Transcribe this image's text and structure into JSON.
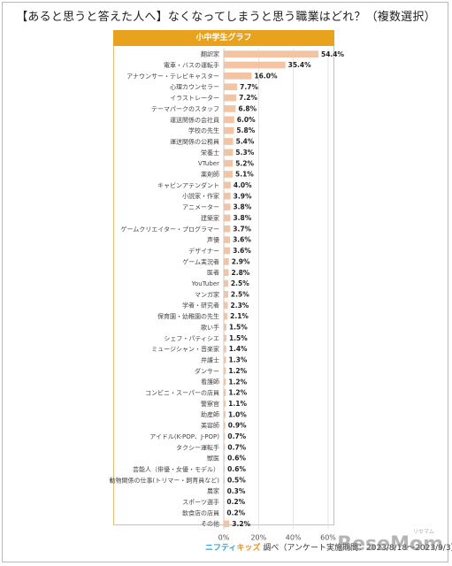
{
  "title": "【あると思うと答えた人へ】なくなってしまうと思う職業はどれ？（複数選択）",
  "panel_title": "小中学生グラフ",
  "footer": {
    "brand_part1": "ニフティ",
    "brand_part2": "キッズ",
    "text": "調べ（アンケート実施期間：2023/8/18～2023/9/3）"
  },
  "watermark": {
    "text": "ReseMom",
    "kana": "リセマム"
  },
  "colors": {
    "bar": "#f2c4a3",
    "header": "#e8a21e",
    "grid": "#dddddd"
  },
  "chart_data": {
    "type": "bar",
    "orientation": "horizontal",
    "title": "",
    "xlabel": "",
    "ylabel": "",
    "xlim": [
      0,
      60
    ],
    "ticks": [
      "0%",
      "20%",
      "40%",
      "60%"
    ],
    "tick_values": [
      0,
      20,
      40,
      60
    ],
    "grid": true,
    "categories": [
      "翻訳家",
      "電車・バスの運転手",
      "アナウンサー・テレビキャスター",
      "心理カウンセラー",
      "イラストレーター",
      "テーマパークのスタッフ",
      "運送関係の会社員",
      "学校の先生",
      "運送関係の公務員",
      "栄養士",
      "VTuber",
      "薬剤師",
      "キャビンアテンダント",
      "小説家・作家",
      "アニメーター",
      "建築家",
      "ゲームクリエイター・プログラマー",
      "声優",
      "デザイナー",
      "ゲーム実況者",
      "医者",
      "YouTuber",
      "マンガ家",
      "学者・研究者",
      "保育園・幼稚園の先生",
      "歌い手",
      "シェフ・パティシエ",
      "ミュージシャン・音楽家",
      "弁護士",
      "ダンサー",
      "看護師",
      "コンビニ・スーパーの店員",
      "警察官",
      "助産師",
      "美容師",
      "アイドル(K-POP、J-POP)",
      "タクシー運転手",
      "獣医",
      "芸能人（俳優・女優・モデル）",
      "動物関係の仕事(トリマー・飼育員など)",
      "農家",
      "スポーツ選手",
      "飲食店の店員",
      "その他"
    ],
    "values": [
      54.4,
      35.4,
      16.0,
      7.7,
      7.2,
      6.8,
      6.0,
      5.8,
      5.4,
      5.3,
      5.2,
      5.1,
      4.0,
      3.9,
      3.8,
      3.8,
      3.7,
      3.6,
      3.6,
      2.9,
      2.8,
      2.5,
      2.5,
      2.3,
      2.1,
      1.5,
      1.5,
      1.4,
      1.3,
      1.2,
      1.2,
      1.2,
      1.1,
      1.0,
      0.9,
      0.7,
      0.7,
      0.6,
      0.6,
      0.5,
      0.3,
      0.2,
      0.2,
      3.2
    ],
    "value_labels": [
      "54.4%",
      "35.4%",
      "16.0%",
      "7.7%",
      "7.2%",
      "6.8%",
      "6.0%",
      "5.8%",
      "5.4%",
      "5.3%",
      "5.2%",
      "5.1%",
      "4.0%",
      "3.9%",
      "3.8%",
      "3.8%",
      "3.7%",
      "3.6%",
      "3.6%",
      "2.9%",
      "2.8%",
      "2.5%",
      "2.5%",
      "2.3%",
      "2.1%",
      "1.5%",
      "1.5%",
      "1.4%",
      "1.3%",
      "1.2%",
      "1.2%",
      "1.2%",
      "1.1%",
      "1.0%",
      "0.9%",
      "0.7%",
      "0.7%",
      "0.6%",
      "0.6%",
      "0.5%",
      "0.3%",
      "0.2%",
      "0.2%",
      "3.2%"
    ]
  }
}
